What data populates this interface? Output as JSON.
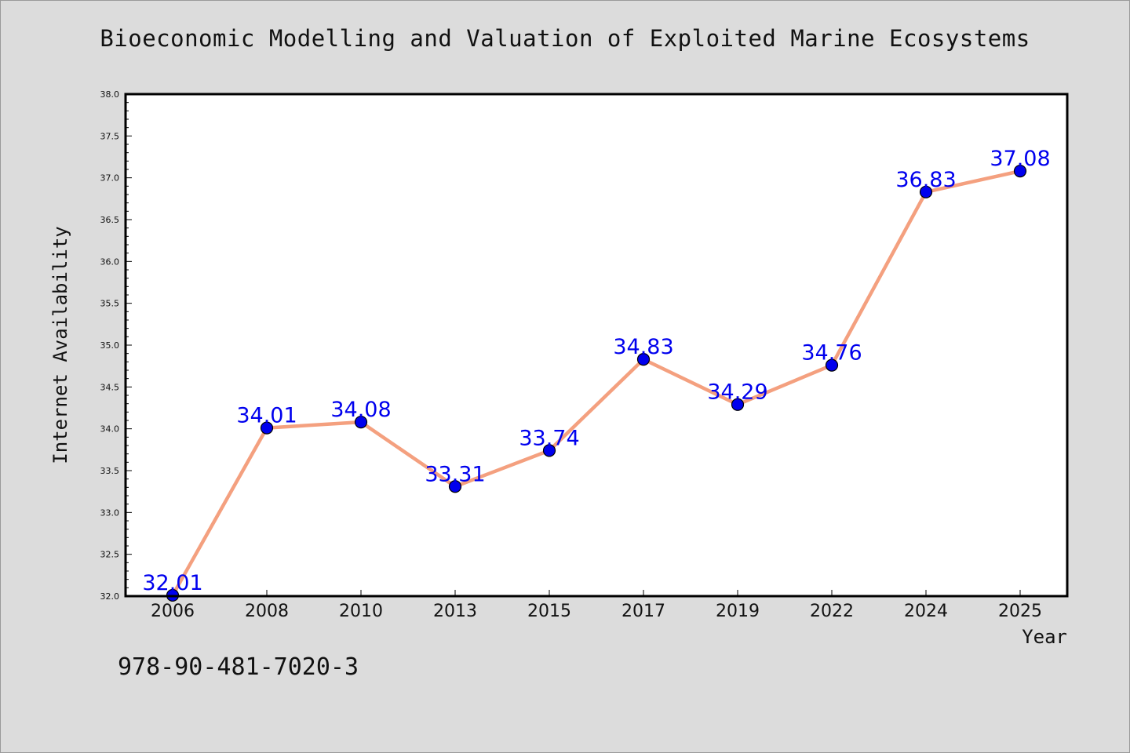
{
  "chart_data": {
    "type": "line",
    "title": "Bioeconomic Modelling and Valuation of Exploited Marine Ecosystems",
    "xlabel": "Year",
    "ylabel": "Internet Availability",
    "categories": [
      "2006",
      "2008",
      "2010",
      "2013",
      "2015",
      "2017",
      "2019",
      "2022",
      "2024",
      "2025"
    ],
    "series": [
      {
        "values": [
          32.01,
          34.01,
          34.08,
          33.31,
          33.74,
          34.83,
          34.29,
          34.76,
          36.83,
          37.08
        ],
        "labels": [
          "32.01",
          "34.01",
          "34.08",
          "33.31",
          "33.74",
          "34.83",
          "34.29",
          "34.76",
          "36.83",
          "37.08"
        ]
      }
    ],
    "ylim": [
      32.0,
      38.0
    ],
    "yticks": [
      "32.0",
      "32.5",
      "33.0",
      "33.5",
      "34.0",
      "34.5",
      "35.0",
      "35.5",
      "36.0",
      "36.5",
      "37.0",
      "37.5",
      "38.0"
    ],
    "grid": false,
    "colors": {
      "line": "#f4a07f",
      "marker": "#0000ee",
      "labels": "#0000ee",
      "background": "#dcdcdc",
      "plot_area": "#ffffff"
    }
  },
  "footer": {
    "isbn": "978-90-481-7020-3"
  }
}
